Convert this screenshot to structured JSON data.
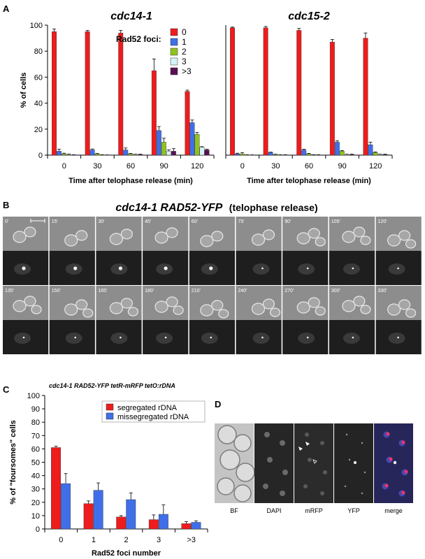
{
  "panels": {
    "A": "A",
    "B": "B",
    "C": "C",
    "D": "D"
  },
  "chart_data": [
    {
      "type": "bar",
      "title": "cdc14-1",
      "xlabel": "Time after telophase release (min)",
      "ylabel": "% of  cells",
      "ylim": [
        0,
        100
      ],
      "yticks": [
        0,
        20,
        40,
        60,
        80,
        100
      ],
      "categories": [
        "0",
        "30",
        "60",
        "90",
        "120"
      ],
      "legend_title": "Rad52 foci:",
      "legend_placement": "top-right",
      "series": [
        {
          "name": "0",
          "values": [
            95,
            95,
            94,
            65,
            49
          ],
          "errors": [
            2,
            1,
            2,
            9,
            1
          ]
        },
        {
          "name": "1",
          "values": [
            3,
            4,
            4,
            19,
            25
          ],
          "errors": [
            1.5,
            0.7,
            1.5,
            3,
            2
          ]
        },
        {
          "name": "2",
          "values": [
            1,
            1,
            1,
            10,
            16
          ],
          "errors": [
            0.5,
            0.3,
            0.3,
            3,
            1.5
          ]
        },
        {
          "name": "3",
          "values": [
            0.5,
            0.2,
            0.5,
            3,
            6
          ],
          "errors": [
            0.3,
            0.1,
            0.2,
            1,
            0.5
          ]
        },
        {
          "name": ">3",
          "values": [
            0.2,
            0.1,
            0.5,
            3,
            4
          ],
          "errors": [
            0.1,
            0.1,
            0.2,
            2,
            0.5
          ]
        }
      ]
    },
    {
      "type": "bar",
      "title": "cdc15-2",
      "xlabel": "Time after telophase release (min)",
      "ylim": [
        0,
        100
      ],
      "categories": [
        "0",
        "30",
        "60",
        "90",
        "120"
      ],
      "series": [
        {
          "name": "0",
          "values": [
            98,
            98,
            96,
            87,
            90
          ],
          "errors": [
            0.5,
            1,
            1.5,
            2,
            4
          ]
        },
        {
          "name": "1",
          "values": [
            1,
            2,
            4,
            10,
            8
          ],
          "errors": [
            0.5,
            0.3,
            0.5,
            1,
            2
          ]
        },
        {
          "name": "2",
          "values": [
            1,
            0.5,
            1,
            3,
            2
          ],
          "errors": [
            1,
            0.2,
            0.3,
            0.5,
            0.5
          ]
        },
        {
          "name": "3",
          "values": [
            0.2,
            0.2,
            0.3,
            0.5,
            0.5
          ],
          "errors": [
            0.1,
            0.1,
            0.1,
            0.2,
            0.2
          ]
        },
        {
          "name": ">3",
          "values": [
            0.1,
            0.2,
            0.2,
            0.5,
            0.5
          ],
          "errors": [
            0.1,
            0.1,
            0.1,
            0.2,
            0.2
          ]
        }
      ]
    },
    {
      "type": "bar",
      "title": "cdc14-1 RAD52-YFP tetR-mRFP tetO:rDNA",
      "xlabel": "Rad52 foci number",
      "ylabel": "% of  \"foursomes\" cells",
      "ylim": [
        0,
        100
      ],
      "yticks": [
        0,
        10,
        20,
        30,
        40,
        50,
        60,
        70,
        80,
        90,
        100
      ],
      "categories": [
        "0",
        "1",
        "2",
        "3",
        ">3"
      ],
      "legend_placement": "top-right",
      "series": [
        {
          "name": "segregated rDNA",
          "values": [
            61,
            19,
            9,
            7,
            4
          ],
          "errors": [
            1,
            2,
            1,
            3.5,
            1.5
          ]
        },
        {
          "name": "missegregated rDNA",
          "values": [
            34,
            29,
            22,
            11,
            5
          ],
          "errors": [
            7.5,
            5.5,
            5,
            7,
            1
          ]
        }
      ]
    }
  ],
  "colors": {
    "foci0": "#ee1c1c",
    "foci1": "#3f6fe8",
    "foci2": "#8fc31f",
    "foci3": "#d6f3f8",
    "foci4": "#5a0f52",
    "segregated": "#ee1c1c",
    "missegregated": "#3f6fe8"
  },
  "panelB": {
    "title_italic": "cdc14-1 RAD52-YFP",
    "title_plain": "(telophase release)",
    "timepoints_row1": [
      "0'",
      "15'",
      "30'",
      "45'",
      "60'",
      "75'",
      "90'",
      "105'",
      "120'"
    ],
    "timepoints_row2": [
      "135'",
      "150'",
      "165'",
      "180'",
      "210'",
      "240'",
      "270'",
      "300'",
      "330'"
    ]
  },
  "panelD": {
    "labels": [
      "BF",
      "DAPI",
      "mRFP",
      "YFP",
      "merge"
    ]
  }
}
